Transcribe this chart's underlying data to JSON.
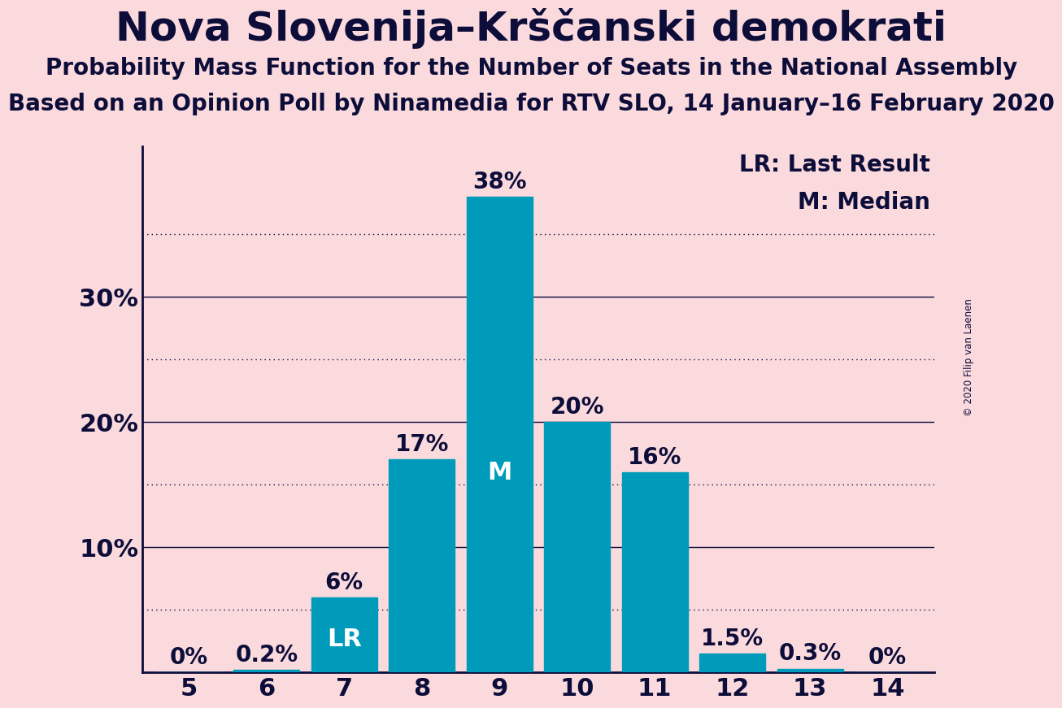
{
  "title": "Nova Slovenija–Krščanski demokrati",
  "subtitle": "Probability Mass Function for the Number of Seats in the National Assembly",
  "subsubtitle": "Based on an Opinion Poll by Ninamedia for RTV SLO, 14 January–16 February 2020",
  "copyright": "© 2020 Filip van Laenen",
  "seats": [
    5,
    6,
    7,
    8,
    9,
    10,
    11,
    12,
    13,
    14
  ],
  "probabilities": [
    0.0,
    0.2,
    6.0,
    17.0,
    38.0,
    20.0,
    16.0,
    1.5,
    0.3,
    0.0
  ],
  "bar_labels": [
    "0%",
    "0.2%",
    "6%",
    "17%",
    "38%",
    "20%",
    "16%",
    "1.5%",
    "0.3%",
    "0%"
  ],
  "bar_color": "#009BBB",
  "background_color": "#FADADD",
  "text_color": "#0D0D3A",
  "yticks": [
    10,
    20,
    30
  ],
  "ytick_labels": [
    "10%",
    "20%",
    "30%"
  ],
  "dotted_lines": [
    5,
    15,
    25,
    35
  ],
  "solid_lines": [
    10,
    20,
    30
  ],
  "lr_seat": 7,
  "median_seat": 9,
  "inner_label_fontsize": 20,
  "bar_label_fontsize": 20,
  "title_fontsize": 36,
  "subtitle_fontsize": 20,
  "subsubtitle_fontsize": 20,
  "ytick_fontsize": 22,
  "xtick_fontsize": 22,
  "legend_fontsize": 20
}
